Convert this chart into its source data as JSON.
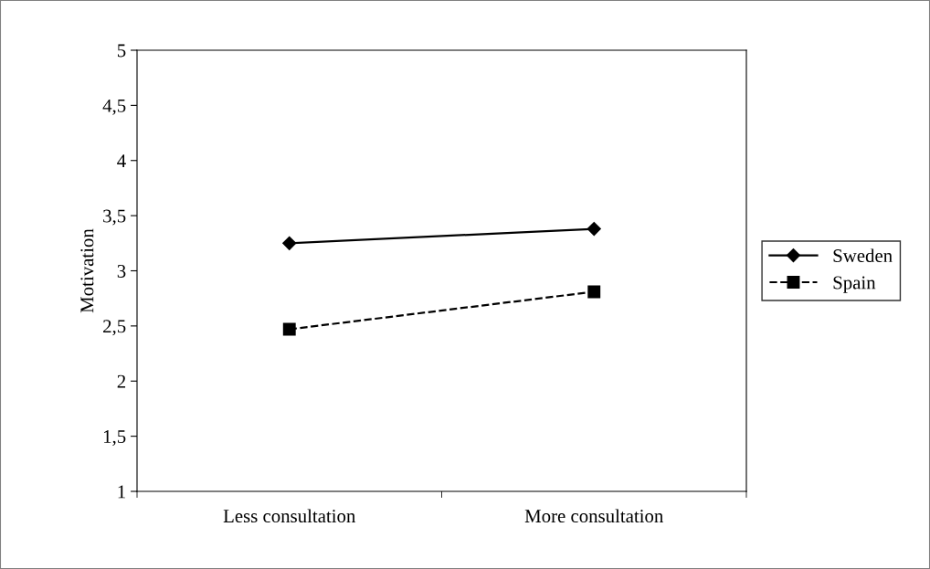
{
  "chart_data": {
    "type": "line",
    "ylabel": "Motivation",
    "categories": [
      "Less consultation",
      "More consultation"
    ],
    "series": [
      {
        "name": "Sweden",
        "color": "#000000",
        "marker": "diamond",
        "line_style": "solid",
        "values": [
          3.25,
          3.38
        ]
      },
      {
        "name": "Spain",
        "color": "#000000",
        "marker": "square",
        "line_style": "dashed",
        "values": [
          2.47,
          2.81
        ]
      }
    ],
    "ylim": [
      1,
      5
    ],
    "yticks": [
      1,
      {
        "value": 1.5,
        "label": "1,5"
      },
      2,
      {
        "value": 2.5,
        "label": "2,5"
      },
      3,
      {
        "value": 3.5,
        "label": "3,5"
      },
      4,
      {
        "value": 4.5,
        "label": "4,5"
      },
      5
    ],
    "grid": false,
    "legend": "right"
  }
}
